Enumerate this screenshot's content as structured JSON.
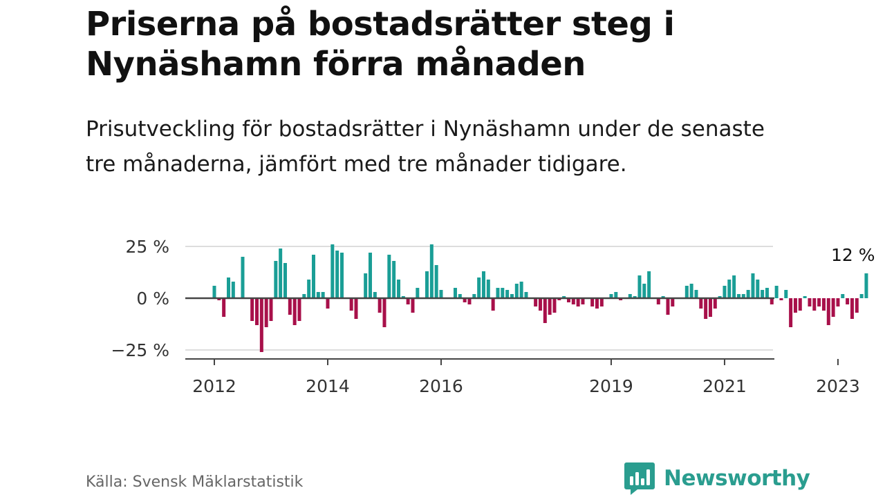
{
  "header": {
    "title": "Priserna på bostadsrätter steg i Nynäshamn förra månaden",
    "subtitle": "Prisutveckling för bostadsrätter i Nynäshamn under de senaste tre månaderna, jämfört med tre månader tidigare."
  },
  "footer": {
    "source": "Källa: Svensk Mäklarstatistik",
    "brand": "Newsworthy"
  },
  "colors": {
    "positive": "#1a9e96",
    "negative": "#a8104a",
    "brand": "#2a9d8f"
  },
  "chart_data": {
    "type": "bar",
    "title": "Priserna på bostadsrätter steg i Nynäshamn förra månaden",
    "subtitle": "Prisutveckling för bostadsrätter i Nynäshamn under de senaste tre månaderna, jämfört med tre månader tidigare.",
    "xlabel": "",
    "ylabel": "",
    "ylim": [
      -29,
      29
    ],
    "yticks": [
      25,
      0,
      -25
    ],
    "ytick_labels": [
      "25 %",
      "0 %",
      "−25 %"
    ],
    "xticks": [
      {
        "label": "2012",
        "index": 0
      },
      {
        "label": "2014",
        "index": 24
      },
      {
        "label": "2016",
        "index": 48
      },
      {
        "label": "2019",
        "index": 84
      },
      {
        "label": "2021",
        "index": 108
      },
      {
        "label": "2023",
        "index": 132
      }
    ],
    "start": "2012-01",
    "frequency": "monthly",
    "annotation": {
      "text": "12 %",
      "index": 135
    },
    "values": [
      6,
      -1,
      -9,
      10,
      8,
      0,
      20,
      0,
      -11,
      -13,
      -26,
      -14,
      -11,
      18,
      24,
      17,
      -8,
      -13,
      -11,
      2,
      9,
      21,
      3,
      3,
      -5,
      26,
      23,
      22,
      0,
      -6,
      -10,
      0,
      12,
      22,
      3,
      -7,
      -14,
      21,
      18,
      9,
      1,
      -3,
      -7,
      5,
      0,
      13,
      26,
      16,
      4,
      0,
      0,
      5,
      2,
      -2,
      -3,
      2,
      10,
      13,
      9,
      -6,
      5,
      5,
      4,
      2,
      7,
      8,
      3,
      0,
      -4,
      -6,
      -12,
      -8,
      -7,
      -1,
      1,
      -2,
      -3,
      -4,
      -3,
      0,
      -4,
      -5,
      -4,
      0,
      2,
      3,
      -1,
      0,
      2,
      1,
      11,
      7,
      13,
      0,
      -3,
      1,
      -8,
      -4,
      0,
      0,
      6,
      7,
      4,
      -5,
      -10,
      -9,
      -5,
      1,
      6,
      9,
      11,
      2,
      2,
      4,
      12,
      9,
      4,
      5,
      -3,
      6,
      -1,
      4,
      -14,
      -7,
      -6,
      1,
      -4,
      -6,
      -4,
      -6,
      -13,
      -9,
      -4,
      2,
      -3,
      -10,
      -7,
      2,
      12
    ]
  }
}
